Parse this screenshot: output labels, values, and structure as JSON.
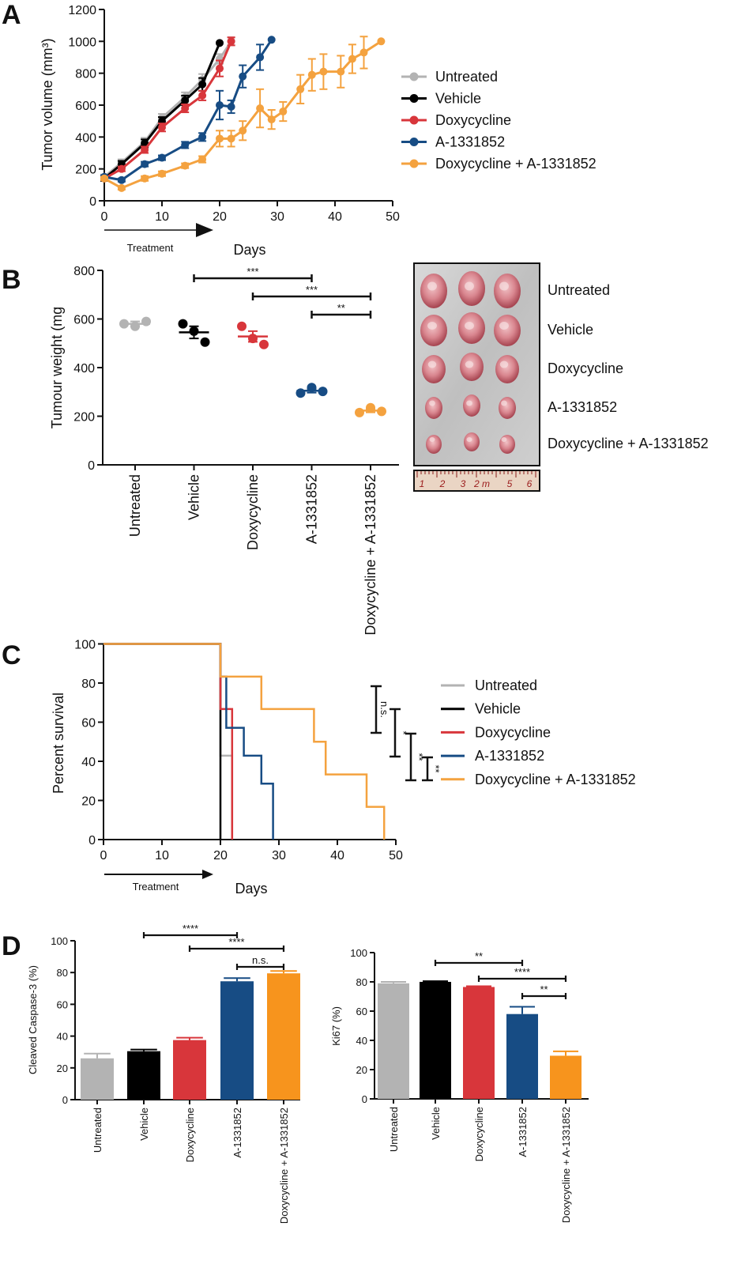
{
  "colors": {
    "Untreated": "#b3b3b3",
    "Vehicle": "#000000",
    "Doxycycline": "#d8363b",
    "A-1331852": "#174c84",
    "Doxycycline + A-1331852": "#f4a23f",
    "bar_orange": "#f7941d"
  },
  "panels": [
    "A",
    "B",
    "C",
    "D"
  ],
  "chart_data": [
    {
      "id": "A",
      "type": "line",
      "ylabel": "Tumor volume (mm³)",
      "xlabel": "Days",
      "treatment_label": "Treatment",
      "xlim": [
        0,
        50
      ],
      "ylim": [
        0,
        1200
      ],
      "xticks": [
        0,
        10,
        20,
        30,
        40,
        50
      ],
      "yticks": [
        0,
        200,
        400,
        600,
        800,
        1000,
        1200
      ],
      "series": [
        {
          "name": "Untreated",
          "x": [
            0,
            3,
            7,
            10,
            14,
            17,
            20,
            22
          ],
          "y": [
            150,
            240,
            370,
            520,
            650,
            760,
            890,
            1000
          ],
          "err": [
            15,
            20,
            25,
            25,
            30,
            35,
            30,
            25
          ]
        },
        {
          "name": "Vehicle",
          "x": [
            0,
            3,
            7,
            10,
            14,
            17,
            20
          ],
          "y": [
            140,
            230,
            360,
            500,
            630,
            730,
            990
          ],
          "err": [
            15,
            20,
            25,
            25,
            30,
            40,
            0
          ]
        },
        {
          "name": "Doxycycline",
          "x": [
            0,
            3,
            7,
            10,
            14,
            17,
            20,
            22
          ],
          "y": [
            140,
            200,
            320,
            460,
            580,
            660,
            830,
            1000
          ],
          "err": [
            10,
            15,
            20,
            25,
            25,
            30,
            50,
            25
          ]
        },
        {
          "name": "A-1331852",
          "x": [
            0,
            3,
            7,
            10,
            14,
            17,
            20,
            22,
            24,
            27,
            29
          ],
          "y": [
            150,
            130,
            230,
            270,
            350,
            400,
            600,
            590,
            780,
            900,
            1010
          ],
          "err": [
            10,
            10,
            15,
            15,
            20,
            25,
            90,
            40,
            70,
            80,
            0
          ]
        },
        {
          "name": "Doxycycline + A-1331852",
          "x": [
            0,
            3,
            7,
            10,
            14,
            17,
            20,
            22,
            24,
            27,
            29,
            31,
            34,
            36,
            38,
            41,
            43,
            45,
            48
          ],
          "y": [
            140,
            80,
            140,
            170,
            220,
            260,
            390,
            390,
            440,
            580,
            510,
            560,
            700,
            790,
            810,
            810,
            890,
            930,
            1000
          ],
          "err": [
            10,
            10,
            15,
            15,
            15,
            20,
            50,
            50,
            60,
            120,
            60,
            60,
            90,
            100,
            110,
            100,
            90,
            100,
            0
          ]
        }
      ]
    },
    {
      "id": "B",
      "type": "scatter",
      "ylabel": "Tumour weight (mg",
      "ylim": [
        0,
        800
      ],
      "yticks": [
        0,
        200,
        400,
        600,
        800
      ],
      "categories": [
        "Untreated",
        "Vehicle",
        "Doxycycline",
        "A-1331852",
        "Doxycycline + A-1331852"
      ],
      "points": [
        [
          580,
          570,
          590
        ],
        [
          580,
          550,
          505
        ],
        [
          570,
          520,
          495
        ],
        [
          295,
          318,
          302
        ],
        [
          215,
          235,
          220
        ]
      ],
      "means": [
        580,
        545,
        528,
        305,
        223
      ],
      "sem": [
        10,
        25,
        22,
        8,
        7
      ],
      "significance": [
        {
          "from": 1,
          "to": 3,
          "label": "***"
        },
        {
          "from": 2,
          "to": 4,
          "label": "***"
        },
        {
          "from": 3,
          "to": 4,
          "label": "**"
        }
      ],
      "photo": {
        "row_labels": [
          "Untreated",
          "Vehicle",
          "Doxycycline",
          "A-1331852",
          "Doxycycline + A-1331852"
        ],
        "ruler_numbers": [
          "1",
          "2",
          "3",
          "2 m",
          "5",
          "6"
        ]
      }
    },
    {
      "id": "C",
      "type": "line",
      "subtype": "step",
      "ylabel": "Percent survival",
      "xlabel": "Days",
      "treatment_label": "Treatment",
      "xlim": [
        0,
        50
      ],
      "ylim": [
        0,
        100
      ],
      "xticks": [
        0,
        10,
        20,
        30,
        40,
        50
      ],
      "yticks": [
        0,
        20,
        40,
        60,
        80,
        100
      ],
      "series": [
        {
          "name": "Untreated",
          "x": [
            0,
            20,
            20,
            22,
            22
          ],
          "y": [
            100,
            100,
            42.9,
            42.9,
            0
          ]
        },
        {
          "name": "Vehicle",
          "x": [
            0,
            20,
            20
          ],
          "y": [
            100,
            100,
            0
          ]
        },
        {
          "name": "Doxycycline",
          "x": [
            0,
            20,
            20,
            22,
            22
          ],
          "y": [
            100,
            100,
            66.7,
            66.7,
            0
          ]
        },
        {
          "name": "A-1331852",
          "x": [
            0,
            20,
            20,
            21,
            21,
            24,
            24,
            27,
            27,
            29,
            29
          ],
          "y": [
            100,
            100,
            83.3,
            83.3,
            57.1,
            57.1,
            42.9,
            42.9,
            28.6,
            28.6,
            0
          ]
        },
        {
          "name": "Doxycycline + A-1331852",
          "x": [
            0,
            20,
            20,
            27,
            27,
            36,
            36,
            38,
            38,
            45,
            45,
            48,
            48
          ],
          "y": [
            100,
            100,
            83.3,
            83.3,
            66.7,
            66.7,
            50,
            50,
            33.3,
            33.3,
            16.7,
            16.7,
            0
          ]
        }
      ],
      "significance": [
        "n.s.",
        "*",
        "**",
        "**"
      ]
    },
    {
      "id": "D1",
      "type": "bar",
      "ylabel": "Cleaved Caspase-3 (%)",
      "ylim": [
        0,
        100
      ],
      "yticks": [
        0,
        20,
        40,
        60,
        80,
        100
      ],
      "categories": [
        "Untreated",
        "Vehicle",
        "Doxycycline",
        "A-1331852",
        "Doxycycline + A-1331852"
      ],
      "values": [
        26,
        30.5,
        37.5,
        74.5,
        79.5
      ],
      "err": [
        3,
        1,
        1.5,
        2,
        1.5
      ],
      "significance": [
        {
          "from": 1,
          "to": 3,
          "label": "****"
        },
        {
          "from": 2,
          "to": 4,
          "label": "****"
        },
        {
          "from": 3,
          "to": 4,
          "label": "n.s."
        }
      ]
    },
    {
      "id": "D2",
      "type": "bar",
      "ylabel": "Ki67 (%)",
      "ylim": [
        0,
        100
      ],
      "yticks": [
        0,
        20,
        40,
        60,
        80,
        100
      ],
      "categories": [
        "Untreated",
        "Vehicle",
        "Doxycycline",
        "A-1331852",
        "Doxycycline + A-1331852"
      ],
      "values": [
        79,
        80,
        76.5,
        58,
        29.5
      ],
      "err": [
        1,
        0.5,
        0.5,
        5,
        3
      ],
      "significance": [
        {
          "from": 1,
          "to": 3,
          "label": "**"
        },
        {
          "from": 2,
          "to": 4,
          "label": "****"
        },
        {
          "from": 3,
          "to": 4,
          "label": "**"
        }
      ]
    }
  ]
}
